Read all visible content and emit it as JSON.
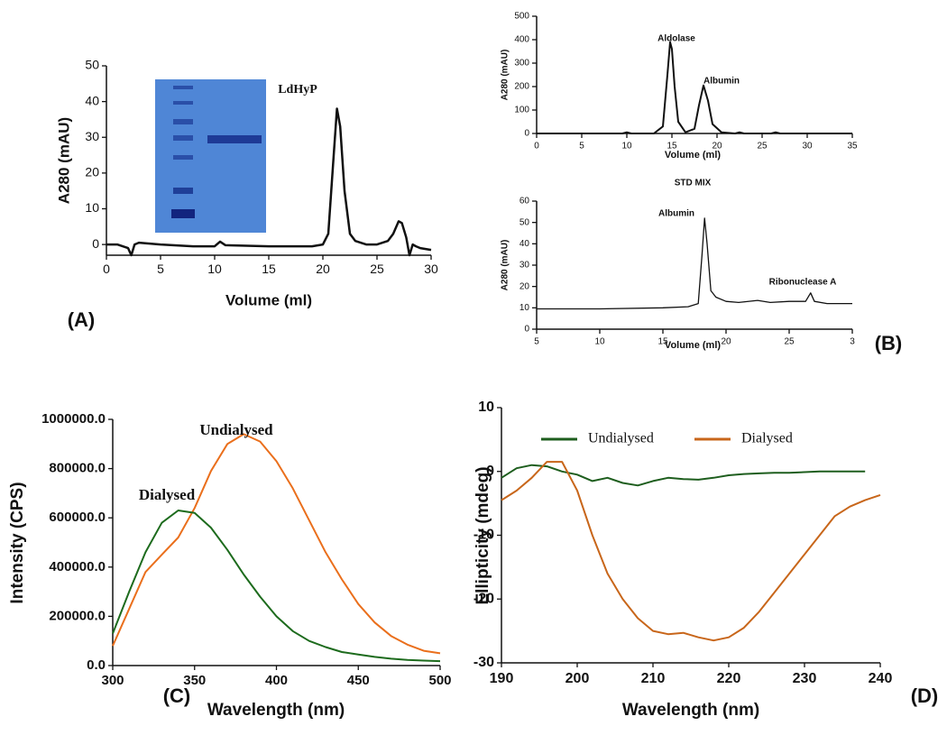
{
  "chart_data": [
    {
      "type": "line",
      "panel_label": "(A)",
      "x_label": "Volume (ml)",
      "y_label": "A280 (mAU)",
      "annotations": [
        "LdHyP"
      ],
      "color": "#111111",
      "x": [
        0,
        1,
        2,
        2.3,
        2.6,
        3,
        5,
        8,
        10,
        10.5,
        11,
        15,
        19,
        20,
        20.5,
        21,
        21.3,
        21.6,
        22,
        22.5,
        23,
        24,
        25,
        26,
        26.5,
        27,
        27.3,
        27.7,
        28,
        28.3,
        28.6,
        29,
        30
      ],
      "values": [
        0,
        0,
        -1,
        -3,
        0,
        0.5,
        0,
        -0.5,
        -0.5,
        0.8,
        -0.2,
        -0.5,
        -0.5,
        0,
        3,
        25,
        38,
        33,
        15,
        3,
        1,
        0,
        0,
        1,
        3,
        6.5,
        6,
        2,
        -3,
        0,
        -0.5,
        -1,
        -1.5
      ],
      "xlim": [
        0,
        30
      ],
      "xticks": [
        0,
        5,
        10,
        15,
        20,
        25,
        30
      ],
      "ylim": [
        -3,
        50
      ],
      "yticks": [
        0,
        10,
        20,
        30,
        40,
        50
      ]
    },
    {
      "type": "line",
      "x_label": "Volume (ml)",
      "y_label": "A280 (mAU)",
      "annotations": [
        "Aldolase",
        "Albumin"
      ],
      "color": "#111111",
      "x": [
        0,
        5,
        9.5,
        10,
        10.5,
        13,
        14,
        14.5,
        14.8,
        15,
        15.3,
        15.7,
        16.5,
        17.5,
        18,
        18.5,
        19,
        19.5,
        20.5,
        22,
        22.5,
        23,
        25,
        26,
        26.5,
        27,
        30,
        35
      ],
      "values": [
        0,
        0,
        0,
        5,
        0,
        0,
        30,
        250,
        390,
        360,
        200,
        50,
        5,
        20,
        120,
        205,
        140,
        40,
        5,
        0,
        5,
        0,
        0,
        0,
        5,
        0,
        0,
        0
      ],
      "xlim": [
        0,
        35
      ],
      "xticks": [
        0,
        5,
        10,
        15,
        20,
        25,
        30,
        35
      ],
      "ylim": [
        0,
        500
      ],
      "yticks": [
        0,
        100,
        200,
        300,
        400,
        500
      ]
    },
    {
      "type": "line",
      "title": "STD MIX",
      "panel_label": "(B)",
      "x_label": "Volume (ml)",
      "y_label": "A280 (mAU)",
      "annotations": [
        "Albumin",
        "Ribonuclease A"
      ],
      "color": "#111111",
      "x": [
        5,
        10,
        15,
        17,
        17.8,
        18.1,
        18.3,
        18.5,
        18.8,
        19.2,
        20,
        21,
        22.5,
        23.5,
        25,
        26.3,
        26.7,
        27,
        28,
        30
      ],
      "values": [
        9.5,
        9.5,
        10,
        10.5,
        12,
        35,
        52,
        40,
        18,
        15,
        13,
        12.5,
        13.5,
        12.5,
        13,
        13,
        17,
        13,
        12,
        12
      ],
      "xlim": [
        5,
        30
      ],
      "xticks": [
        5,
        10,
        15,
        20,
        25,
        {
          "value": 30,
          "label": "3"
        }
      ],
      "ylim": [
        0,
        60
      ],
      "yticks": [
        0,
        10,
        20,
        30,
        40,
        50,
        60
      ]
    },
    {
      "type": "line",
      "panel_label": "(C)",
      "x_label": "Wavelength (nm)",
      "y_label": "Intensity (CPS)",
      "legend": "inline",
      "x": [
        300,
        310,
        320,
        330,
        340,
        350,
        360,
        370,
        380,
        390,
        400,
        410,
        420,
        430,
        440,
        450,
        460,
        470,
        480,
        490,
        500
      ],
      "series": [
        {
          "name": "Undialysed",
          "color": "#ea6f1c",
          "values": [
            80000,
            230000,
            380000,
            450000,
            520000,
            640000,
            790000,
            900000,
            940000,
            910000,
            830000,
            720000,
            590000,
            460000,
            350000,
            250000,
            175000,
            120000,
            85000,
            60000,
            50000
          ]
        },
        {
          "name": "Dialysed",
          "color": "#1d6b1d",
          "values": [
            130000,
            300000,
            460000,
            580000,
            630000,
            620000,
            560000,
            470000,
            370000,
            280000,
            200000,
            140000,
            100000,
            75000,
            55000,
            45000,
            35000,
            28000,
            23000,
            20000,
            18000
          ]
        }
      ],
      "xlim": [
        300,
        500
      ],
      "xticks": [
        300,
        350,
        400,
        450,
        500
      ],
      "ylim": [
        0,
        1000000
      ],
      "yticks": [
        {
          "value": 0,
          "label": "0.0"
        },
        {
          "value": 200000,
          "label": "200000.0"
        },
        {
          "value": 400000,
          "label": "400000.0"
        },
        {
          "value": 600000,
          "label": "600000.0"
        },
        {
          "value": 800000,
          "label": "800000.0"
        },
        {
          "value": 1000000,
          "label": "1000000.0"
        }
      ]
    },
    {
      "type": "line",
      "panel_label": "(D)",
      "x_label": "Wavelength (nm)",
      "y_label": "Ellipticity (mdeg)",
      "legend": "upper left",
      "x": [
        190,
        192,
        194,
        196,
        198,
        200,
        202,
        204,
        206,
        208,
        210,
        212,
        214,
        216,
        218,
        220,
        222,
        224,
        226,
        228,
        230,
        232,
        234,
        236,
        238,
        240
      ],
      "series": [
        {
          "name": "Undialysed",
          "color": "#1e5e1e",
          "values": [
            -1,
            0.5,
            1,
            0.8,
            0,
            -0.5,
            -1.5,
            -1,
            -1.8,
            -2.2,
            -1.5,
            -1,
            -1.2,
            -1.3,
            -1,
            -0.6,
            -0.4,
            -0.3,
            -0.2,
            -0.2,
            -0.1,
            0,
            0,
            0,
            0,
            null
          ]
        },
        {
          "name": "Dialysed",
          "color": "#c8661a",
          "values": [
            -4.5,
            -3,
            -1,
            1.5,
            1.5,
            -3,
            -10,
            -16,
            -20,
            -23,
            -25,
            -25.5,
            -25.3,
            -26,
            -26.5,
            -26,
            -24.5,
            -22,
            -19,
            -16,
            -13,
            -10,
            -7,
            -5.5,
            -4.5,
            -3.7
          ]
        }
      ],
      "xlim": [
        190,
        240
      ],
      "xticks": [
        190,
        200,
        210,
        220,
        230,
        240
      ],
      "ylim": [
        -30,
        10
      ],
      "yticks": [
        -30,
        -20,
        -10,
        0,
        10
      ]
    }
  ]
}
